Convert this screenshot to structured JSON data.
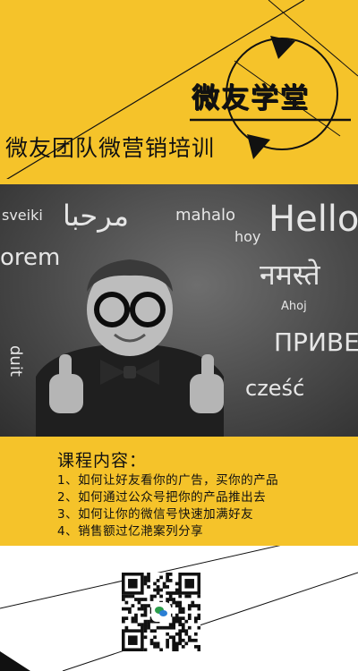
{
  "brand": {
    "title": "微友学堂"
  },
  "header": {
    "subtitle": "微友团队微营销培训"
  },
  "photo": {
    "chalk_words": [
      "Hello",
      "mahalo",
      "hoy",
      "sveiki",
      "orem",
      "नमस्ते",
      "ПРИВЕ",
      "cześć",
      "Ahoj",
      "duit",
      "مرحبا"
    ]
  },
  "course": {
    "title": "课程内容：",
    "items": [
      "1、如何让好友看你的广告，买你的产品",
      "2、如何通过公众号把你的产品推出去",
      "3、如何让你的微信号快速加满好友",
      "4、销售额过亿滟案列分享"
    ]
  },
  "colors": {
    "accent": "#f5c32a",
    "ink": "#111111",
    "board": "#4a4a4a"
  }
}
